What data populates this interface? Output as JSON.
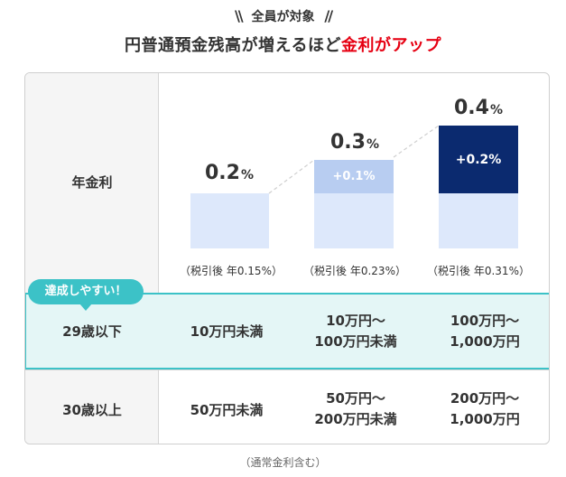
{
  "heading": {
    "subtitle": "全員が対象",
    "title_main": "円普通預金残高が増えるほど",
    "title_accent": "金利がアップ",
    "slash_left": "\\\\",
    "slash_right": "//"
  },
  "rows": {
    "rate_label": "年金利",
    "young_label": "29歳以下",
    "older_label": "30歳以上"
  },
  "badge": "達成しやすい！",
  "tiers": [
    {
      "rate_num": "0.2",
      "rate_pct": "%",
      "plus_label": "",
      "pretax": "（税引後  年0.15%）",
      "young": [
        "10万円未満"
      ],
      "older": [
        "50万円未満"
      ]
    },
    {
      "rate_num": "0.3",
      "rate_pct": "%",
      "plus_label": "+0.1%",
      "pretax": "（税引後  年0.23%）",
      "young": [
        "10万円〜",
        "100万円未満"
      ],
      "older": [
        "50万円〜",
        "200万円未満"
      ]
    },
    {
      "rate_num": "0.4",
      "rate_pct": "%",
      "plus_label": "+0.2%",
      "pretax": "（税引後  年0.31%）",
      "young": [
        "100万円〜",
        "1,000万円"
      ],
      "older": [
        "200万円〜",
        "1,000万円"
      ]
    }
  ],
  "colors": {
    "accent_red": "#e60012",
    "teal": "#3cc2c7",
    "bar_base": "#dde8fb",
    "bar_plus_light": "#b8cdf1",
    "bar_plus_dark": "#0b2a6f"
  },
  "footnote": "（通常金利含む）"
}
